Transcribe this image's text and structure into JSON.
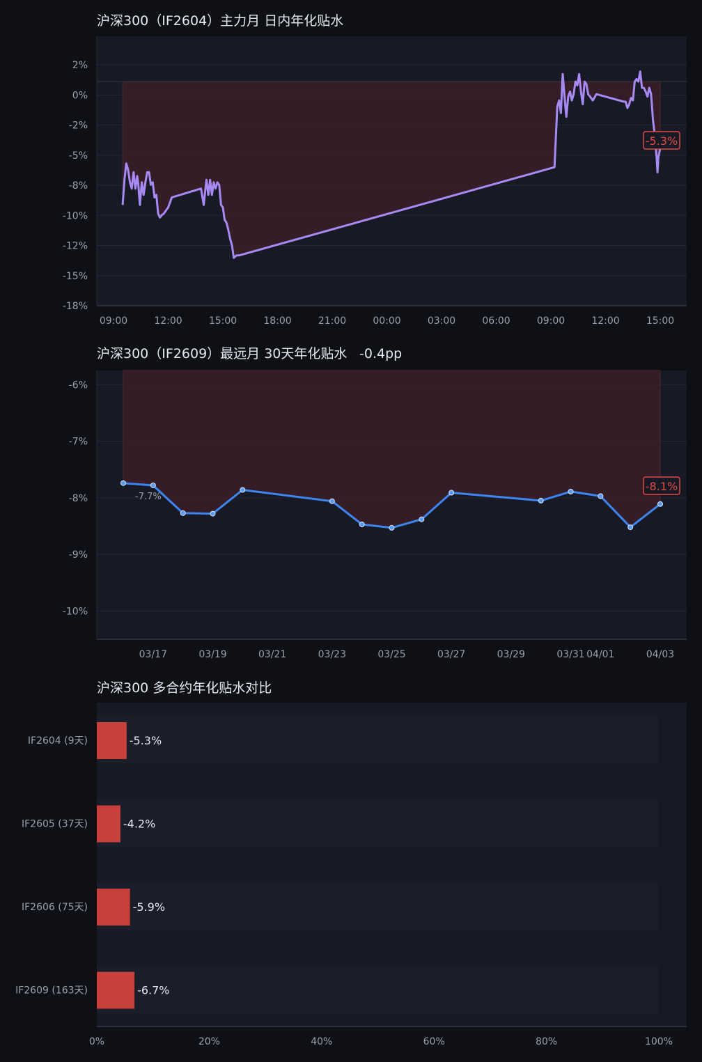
{
  "colors": {
    "background": "#0f1015",
    "plot_bg": "#171a25",
    "grid": "#22263a",
    "fill_negative": "#3a1f27",
    "line_intraday": "#a88af5",
    "line_far": "#3d85f0",
    "bar": "#c8403a",
    "badge": "#e04a44",
    "text": "#e6e8ef",
    "muted": "#9aa0ae"
  },
  "chart_data": [
    {
      "type": "area",
      "title": "沪深300（IF2604）主力月 日内年化贴水",
      "xlabel": "",
      "ylabel": "",
      "y_ticks": [
        "2%",
        "0%",
        "-2%",
        "-5%",
        "-8%",
        "-10%",
        "-12%",
        "-15%",
        "-18%"
      ],
      "ylim": [
        -17.8,
        3.6
      ],
      "x_ticks": [
        "09:00",
        "12:00",
        "15:00",
        "18:00",
        "21:00",
        "00:00",
        "03:00",
        "06:00",
        "09:00",
        "12:00",
        "15:00"
      ],
      "x_hours": [
        0,
        30
      ],
      "series": [
        {
          "x": [
            0.5,
            0.6,
            0.7,
            0.8,
            0.9,
            1.0,
            1.1,
            1.2,
            1.3,
            1.35,
            1.45,
            1.55,
            1.65,
            1.75,
            1.85,
            1.95,
            2.05,
            2.15,
            2.25,
            2.35,
            2.45,
            2.55,
            2.65,
            2.75,
            2.85,
            3.0,
            3.2,
            4.8,
            4.95,
            5.1,
            5.2,
            5.3,
            5.4,
            5.5,
            5.6,
            5.7,
            5.8,
            5.9,
            6.0,
            6.1,
            6.2,
            6.3,
            6.4,
            6.5,
            6.6,
            6.75,
            6.9,
            24.2,
            24.35,
            24.45,
            24.55,
            24.65,
            24.75,
            24.85,
            24.95,
            25.05,
            25.15,
            25.25,
            25.35,
            25.45,
            25.55,
            25.65,
            25.75,
            25.85,
            25.95,
            26.05,
            26.15,
            26.3,
            26.5,
            28.0,
            28.1,
            28.2,
            28.3,
            28.4,
            28.5,
            28.6,
            28.7,
            28.8,
            28.9,
            29.0,
            29.1,
            29.2,
            29.3,
            29.4,
            29.5,
            29.6,
            29.7,
            29.8,
            29.85,
            29.9,
            30.0
          ],
          "values": [
            -9.8,
            -7.8,
            -6.5,
            -7.0,
            -8.0,
            -8.5,
            -7.2,
            -8.5,
            -7.5,
            -8.0,
            -9.8,
            -8.0,
            -9.0,
            -8.0,
            -7.2,
            -7.2,
            -8.2,
            -8.0,
            -9.2,
            -9.0,
            -10.5,
            -10.8,
            -10.6,
            -10.5,
            -10.3,
            -10.0,
            -9.2,
            -8.5,
            -9.8,
            -7.8,
            -9.0,
            -7.8,
            -9.0,
            -8.0,
            -8.5,
            -8.0,
            -8.2,
            -9.8,
            -10.0,
            -11.0,
            -11.2,
            -11.8,
            -12.5,
            -13.0,
            -14.0,
            -13.8,
            -13.8,
            -6.8,
            -2.0,
            -1.5,
            -2.5,
            0.6,
            -1.2,
            -2.8,
            -1.2,
            -0.8,
            -1.5,
            -1.0,
            0.0,
            -0.3,
            0.6,
            -0.8,
            -1.8,
            0.0,
            -0.2,
            -1.0,
            -1.2,
            -1.5,
            -1.0,
            -1.6,
            -1.6,
            -2.1,
            -1.8,
            -1.3,
            -1.5,
            0.0,
            0.2,
            0.0,
            0.8,
            -0.5,
            -0.5,
            -0.8,
            -1.2,
            -0.5,
            -1.0,
            -3.0,
            -4.2,
            -6.0,
            -7.2,
            -6.0,
            -5.3
          ]
        }
      ],
      "last_value_label": "-5.3%",
      "grid": true
    },
    {
      "type": "line",
      "title": "沪深300（IF2609）最远月 30天年化贴水",
      "subtitle": "-0.4pp",
      "xlabel": "",
      "ylabel": "",
      "y_ticks": [
        "-6%",
        "-7%",
        "-8%",
        "-9%",
        "-10%"
      ],
      "y_tick_values": [
        -6,
        -7,
        -8,
        -9,
        -10
      ],
      "ylim": [
        -10.5,
        -5.75
      ],
      "x_ticks": [
        "03/17",
        "03/19",
        "03/21",
        "03/23",
        "03/25",
        "03/27",
        "03/29",
        "03/31",
        "04/01",
        "04/03"
      ],
      "x_tick_days": [
        1,
        3,
        5,
        7,
        9,
        11,
        13,
        15,
        16,
        18
      ],
      "x_days": [
        -0.4,
        18.6
      ],
      "series": [
        {
          "x": [
            0,
            1,
            2,
            3,
            4,
            7,
            8,
            9,
            10,
            11,
            14,
            15,
            16,
            17,
            18
          ],
          "values": [
            -7.74,
            -7.78,
            -8.27,
            -8.28,
            -7.86,
            -8.06,
            -8.47,
            -8.53,
            -8.38,
            -7.91,
            -8.05,
            -7.89,
            -7.97,
            -8.52,
            -8.11
          ]
        }
      ],
      "first_value_label": "-7.7%",
      "last_value_label": "-8.1%",
      "grid": true
    },
    {
      "type": "bar",
      "orientation": "horizontal",
      "title": "沪深300 多合约年化贴水对比",
      "xlabel": "",
      "ylabel": "",
      "categories": [
        "IF2604 (9天)",
        "IF2605 (37天)",
        "IF2606 (75天)",
        "IF2609 (163天)"
      ],
      "values": [
        5.3,
        4.2,
        5.9,
        6.7
      ],
      "value_labels": [
        "-5.3%",
        "-4.2%",
        "-5.9%",
        "-6.7%"
      ],
      "x_ticks": [
        "0%",
        "20%",
        "40%",
        "60%",
        "80%",
        "100%"
      ],
      "xlim": [
        0,
        100
      ],
      "grid": true
    }
  ]
}
